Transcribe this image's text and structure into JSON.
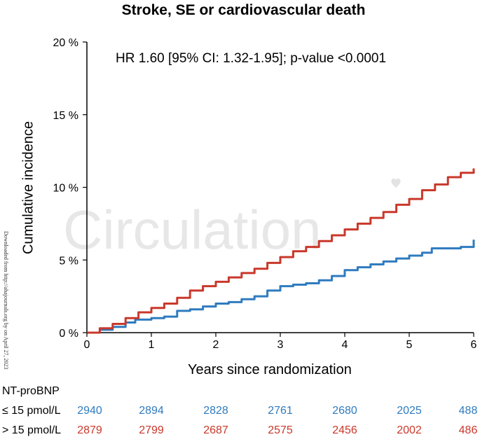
{
  "header": {
    "title": "Stroke, SE or cardiovascular death",
    "annotation": "HR 1.60 [95% CI: 1.32-1.95]; p-value <0.0001"
  },
  "watermark": "Circulation",
  "side_note": "Downloaded from http://ahajournals.org by on April 27, 2023",
  "colors": {
    "low": "#2f7bbf",
    "high": "#c9382b"
  },
  "chart_data": {
    "type": "line",
    "title": "Stroke, SE or cardiovascular death",
    "xlabel": "Years since randomization",
    "ylabel": "Cumulative incidence",
    "xlim": [
      0,
      6
    ],
    "ylim": [
      0,
      20
    ],
    "xticks": [
      "0",
      "1",
      "2",
      "3",
      "4",
      "5",
      "6"
    ],
    "yticks": [
      "0 %",
      "5 %",
      "10 %",
      "15 %",
      "20 %"
    ],
    "annotation": "HR 1.60 [95% CI: 1.32-1.95]; p-value <0.0001",
    "series": [
      {
        "name": "≤ 15 pmol/L",
        "color": "#2f7bbf",
        "x": [
          0,
          0.2,
          0.4,
          0.6,
          0.75,
          1.0,
          1.2,
          1.4,
          1.6,
          1.8,
          2.0,
          2.2,
          2.4,
          2.6,
          2.8,
          3.0,
          3.2,
          3.4,
          3.6,
          3.8,
          4.0,
          4.2,
          4.4,
          4.6,
          4.8,
          5.0,
          5.2,
          5.35,
          5.5,
          5.8,
          6.0
        ],
        "y": [
          0,
          0.2,
          0.4,
          0.7,
          0.9,
          1.0,
          1.1,
          1.5,
          1.6,
          1.8,
          2.0,
          2.1,
          2.3,
          2.5,
          2.9,
          3.2,
          3.3,
          3.4,
          3.6,
          3.9,
          4.3,
          4.5,
          4.7,
          4.9,
          5.1,
          5.3,
          5.5,
          5.8,
          5.8,
          5.9,
          6.4
        ]
      },
      {
        "name": "> 15 pmol/L",
        "color": "#c9382b",
        "x": [
          0,
          0.2,
          0.4,
          0.6,
          0.8,
          1.0,
          1.2,
          1.4,
          1.6,
          1.8,
          2.0,
          2.2,
          2.4,
          2.6,
          2.8,
          3.0,
          3.2,
          3.4,
          3.6,
          3.8,
          4.0,
          4.2,
          4.4,
          4.6,
          4.8,
          5.0,
          5.2,
          5.4,
          5.6,
          5.8,
          6.0
        ],
        "y": [
          0,
          0.3,
          0.6,
          1.0,
          1.4,
          1.7,
          2.0,
          2.4,
          2.9,
          3.2,
          3.5,
          3.8,
          4.1,
          4.4,
          4.8,
          5.2,
          5.6,
          5.9,
          6.3,
          6.7,
          7.1,
          7.5,
          7.9,
          8.3,
          8.8,
          9.2,
          9.8,
          10.2,
          10.7,
          11.0,
          11.3
        ]
      }
    ]
  },
  "risk_table": {
    "title": "NT-proBNP",
    "times": [
      "0",
      "1",
      "2",
      "3",
      "4",
      "5",
      "6"
    ],
    "rows": [
      {
        "label": "≤ 15 pmol/L",
        "color": "#2f7bbf",
        "values": [
          "2940",
          "2894",
          "2828",
          "2761",
          "2680",
          "2025",
          "488"
        ]
      },
      {
        "label": "> 15 pmol/L",
        "color": "#c9382b",
        "values": [
          "2879",
          "2799",
          "2687",
          "2575",
          "2456",
          "2002",
          "486"
        ]
      }
    ]
  }
}
